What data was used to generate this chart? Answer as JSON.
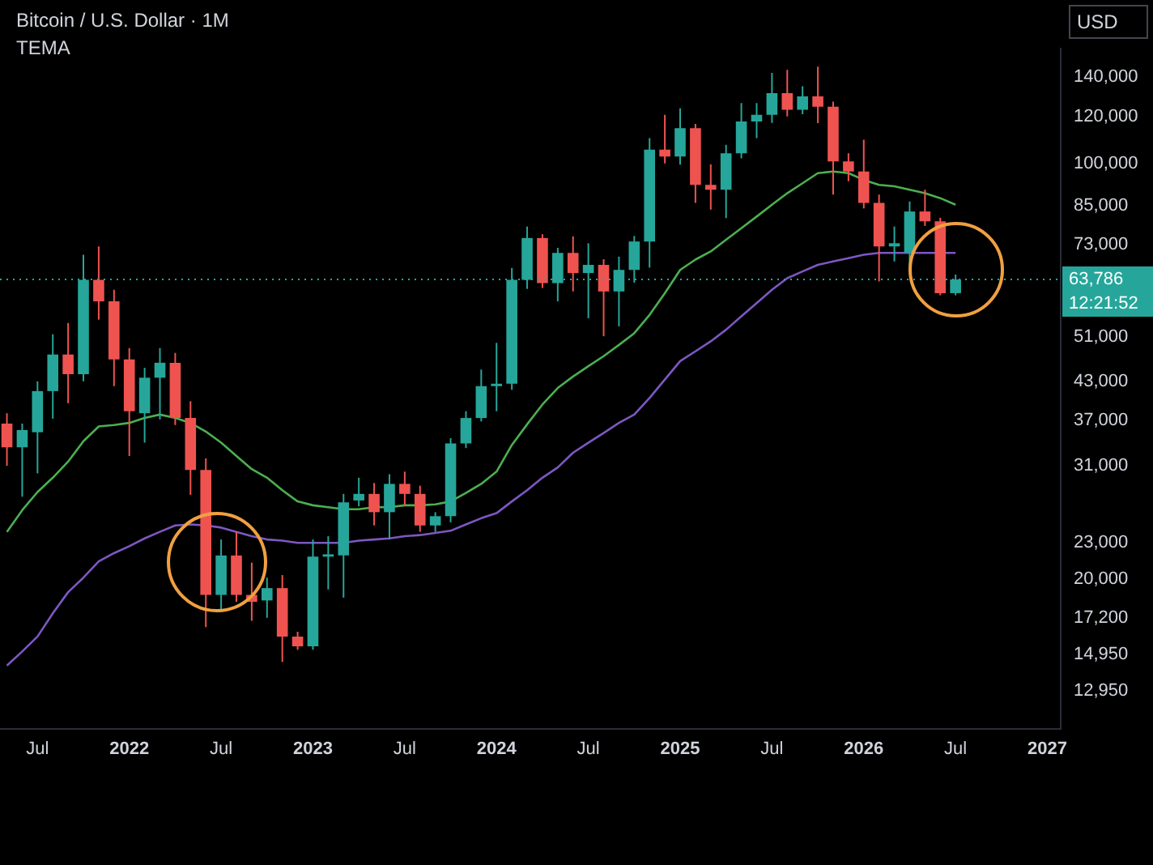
{
  "chart_data": {
    "type": "candlestick",
    "title": "Bitcoin / U.S. Dollar · 1M",
    "subtitle": "TEMA",
    "ylabel": "USD",
    "x": [
      "2021-05",
      "2021-06",
      "2021-07",
      "2021-08",
      "2021-09",
      "2021-10",
      "2021-11",
      "2021-12",
      "2022-01",
      "2022-02",
      "2022-03",
      "2022-04",
      "2022-05",
      "2022-06",
      "2022-07",
      "2022-08",
      "2022-09",
      "2022-10",
      "2022-11",
      "2022-12",
      "2023-01",
      "2023-02",
      "2023-03",
      "2023-04",
      "2023-05",
      "2023-06",
      "2023-07",
      "2023-08",
      "2023-09",
      "2023-10",
      "2023-11",
      "2023-12",
      "2024-01",
      "2024-02",
      "2024-03",
      "2024-04",
      "2024-05",
      "2024-06",
      "2024-07",
      "2024-08",
      "2024-09",
      "2024-10",
      "2024-11",
      "2024-12",
      "2025-01",
      "2025-02",
      "2025-03",
      "2025-04",
      "2025-05",
      "2025-06",
      "2025-07",
      "2025-08",
      "2025-09",
      "2025-10",
      "2025-11",
      "2025-12",
      "2026-01",
      "2026-02",
      "2026-03",
      "2026-04",
      "2026-05",
      "2026-06",
      "2026-07"
    ],
    "series": [
      {
        "type": "candlestick",
        "ohlc": [
          [
            36500,
            38000,
            31000,
            33300
          ],
          [
            33300,
            36500,
            27500,
            35600
          ],
          [
            35300,
            43000,
            30100,
            41400
          ],
          [
            41400,
            51600,
            37200,
            47700
          ],
          [
            47700,
            53900,
            39500,
            44200
          ],
          [
            44200,
            70200,
            43000,
            63700
          ],
          [
            63700,
            72500,
            54600,
            58600
          ],
          [
            58600,
            61300,
            42200,
            46800
          ],
          [
            46800,
            48900,
            32200,
            38300
          ],
          [
            38000,
            45300,
            33900,
            43600
          ],
          [
            43600,
            48900,
            37100,
            46200
          ],
          [
            46200,
            48000,
            36300,
            37300
          ],
          [
            37300,
            39800,
            27700,
            30500
          ],
          [
            30500,
            31900,
            16600,
            18800
          ],
          [
            18800,
            23300,
            17700,
            21900
          ],
          [
            21900,
            24000,
            18300,
            18800
          ],
          [
            18800,
            21300,
            17000,
            18300
          ],
          [
            18400,
            20100,
            17200,
            19300
          ],
          [
            19300,
            20300,
            14500,
            16000
          ],
          [
            16000,
            16300,
            15200,
            15400
          ],
          [
            15400,
            23300,
            15200,
            21800
          ],
          [
            21800,
            23600,
            19200,
            22000
          ],
          [
            21900,
            27800,
            18600,
            26900
          ],
          [
            27100,
            29600,
            26500,
            27800
          ],
          [
            27800,
            29000,
            24600,
            25900
          ],
          [
            25900,
            30000,
            23300,
            28900
          ],
          [
            28900,
            30300,
            26500,
            27800
          ],
          [
            27800,
            28700,
            24000,
            24600
          ],
          [
            24600,
            25900,
            24000,
            25500
          ],
          [
            25500,
            34500,
            24900,
            33800
          ],
          [
            33800,
            38300,
            33200,
            37300
          ],
          [
            37300,
            45000,
            36800,
            42200
          ],
          [
            42200,
            49900,
            38300,
            42600
          ],
          [
            42600,
            66700,
            41600,
            63700
          ],
          [
            63700,
            78300,
            61500,
            74900
          ],
          [
            74900,
            76000,
            61700,
            62900
          ],
          [
            62900,
            72100,
            58600,
            70700
          ],
          [
            70700,
            75400,
            60900,
            65400
          ],
          [
            65400,
            73400,
            54900,
            67500
          ],
          [
            67500,
            69000,
            51200,
            60900
          ],
          [
            60900,
            69700,
            53200,
            66200
          ],
          [
            66200,
            75500,
            63000,
            73900
          ],
          [
            73900,
            110300,
            66800,
            105500
          ],
          [
            105500,
            120700,
            100000,
            102700
          ],
          [
            102700,
            123800,
            99500,
            114600
          ],
          [
            114600,
            116500,
            85800,
            92000
          ],
          [
            92000,
            99600,
            83600,
            90300
          ],
          [
            90300,
            107500,
            80900,
            104000
          ],
          [
            104000,
            126300,
            102000,
            117600
          ],
          [
            117600,
            126300,
            110300,
            120700
          ],
          [
            120700,
            142000,
            117000,
            131300
          ],
          [
            131300,
            143700,
            120000,
            123100
          ],
          [
            123100,
            134800,
            121000,
            129600
          ],
          [
            129600,
            145500,
            116900,
            124600
          ],
          [
            124600,
            127000,
            88600,
            100800
          ],
          [
            100800,
            104000,
            93300,
            96900
          ],
          [
            96900,
            109600,
            84000,
            85800
          ],
          [
            85800,
            88600,
            63300,
            72500
          ],
          [
            72500,
            78300,
            68400,
            73400
          ],
          [
            70700,
            86300,
            67000,
            83000
          ],
          [
            83000,
            90300,
            78500,
            79900
          ],
          [
            79900,
            81000,
            60000,
            60500
          ],
          [
            60500,
            65000,
            60000,
            63786
          ]
        ],
        "colors": [
          "#ef5350",
          "#26a69a",
          "#26a69a",
          "#26a69a",
          "#ef5350",
          "#26a69a",
          "#ef5350",
          "#ef5350",
          "#ef5350",
          "#26a69a",
          "#26a69a",
          "#ef5350",
          "#ef5350",
          "#ef5350",
          "#26a69a",
          "#ef5350",
          "#ef5350",
          "#26a69a",
          "#ef5350",
          "#ef5350",
          "#26a69a",
          "#26a69a",
          "#26a69a",
          "#26a69a",
          "#ef5350",
          "#26a69a",
          "#ef5350",
          "#ef5350",
          "#26a69a",
          "#26a69a",
          "#26a69a",
          "#26a69a",
          "#26a69a",
          "#26a69a",
          "#26a69a",
          "#ef5350",
          "#26a69a",
          "#ef5350",
          "#26a69a",
          "#ef5350",
          "#26a69a",
          "#26a69a",
          "#26a69a",
          "#ef5350",
          "#26a69a",
          "#ef5350",
          "#ef5350",
          "#26a69a",
          "#26a69a",
          "#26a69a",
          "#26a69a",
          "#ef5350",
          "#26a69a",
          "#ef5350",
          "#ef5350",
          "#ef5350",
          "#ef5350",
          "#ef5350",
          "#26a69a",
          "#26a69a",
          "#ef5350",
          "#ef5350",
          "#26a69a"
        ]
      },
      {
        "type": "line",
        "color": "#4caf50",
        "values": [
          24000,
          26100,
          28000,
          29600,
          31500,
          34100,
          36100,
          36300,
          36600,
          37300,
          37800,
          37300,
          36600,
          35400,
          33900,
          32200,
          30600,
          29600,
          28200,
          27000,
          26600,
          26400,
          26200,
          26200,
          26400,
          26400,
          26600,
          26600,
          26700,
          27000,
          27900,
          28900,
          30300,
          33600,
          36400,
          39300,
          41900,
          43800,
          45600,
          47400,
          49500,
          51800,
          55600,
          60500,
          66200,
          68900,
          71100,
          74400,
          77800,
          81400,
          85200,
          89100,
          92600,
          96300,
          96900,
          96300,
          93800,
          92000,
          91500,
          90300,
          89100,
          87400,
          85200
        ]
      },
      {
        "type": "line",
        "color": "#7e57c2",
        "values": [
          14300,
          15100,
          16000,
          17500,
          19000,
          20100,
          21400,
          22100,
          22700,
          23400,
          24000,
          24600,
          24700,
          24600,
          24400,
          24000,
          23600,
          23300,
          23200,
          23000,
          23000,
          23000,
          23000,
          23200,
          23300,
          23400,
          23600,
          23700,
          23900,
          24100,
          24700,
          25300,
          25800,
          27000,
          28200,
          29600,
          30800,
          32600,
          33900,
          35200,
          36600,
          37800,
          40300,
          43300,
          46500,
          48300,
          50200,
          52500,
          55300,
          58200,
          61300,
          64100,
          65800,
          67500,
          68400,
          69300,
          70200,
          70700,
          70700,
          70700,
          70700,
          70700,
          70700
        ]
      }
    ],
    "log": "y",
    "xlim": [
      "2021-04-18",
      "2027-01-28"
    ],
    "xticks": [
      {
        "value": "2021-07",
        "label": "Jul"
      },
      "2022",
      {
        "value": "2022-07",
        "label": "Jul"
      },
      "2023",
      {
        "value": "2023-07",
        "label": "Jul"
      },
      "2024",
      {
        "value": "2024-07",
        "label": "Jul"
      },
      "2025",
      {
        "value": "2025-07",
        "label": "Jul"
      },
      "2026",
      {
        "value": "2026-07",
        "label": "Jul"
      },
      "2027"
    ],
    "ylim": [
      11200,
      156000
    ],
    "yticks": [
      {
        "value": 12950,
        "label": "12,950"
      },
      {
        "value": 14950,
        "label": "14,950"
      },
      {
        "value": 17200,
        "label": "17,200"
      },
      {
        "value": 20000,
        "label": "20,000"
      },
      {
        "value": 23000,
        "label": "23,000"
      },
      {
        "value": 31000,
        "label": "31,000"
      },
      {
        "value": 37000,
        "label": "37,000"
      },
      {
        "value": 43000,
        "label": "43,000"
      },
      {
        "value": 51000,
        "label": "51,000"
      },
      {
        "value": 73000,
        "label": "73,000"
      },
      {
        "value": 85000,
        "label": "85,000"
      },
      {
        "value": 100000,
        "label": "100,000"
      },
      {
        "value": 120000,
        "label": "120,000"
      },
      {
        "value": 140000,
        "label": "140,000"
      }
    ],
    "ref_lines": [
      {
        "axis": "y",
        "value": 63786,
        "label": "63,786",
        "color": "#26a69a",
        "line_style": "dotted"
      }
    ],
    "annotations": [
      "12:21:52"
    ],
    "grid": false,
    "legend": false
  }
}
